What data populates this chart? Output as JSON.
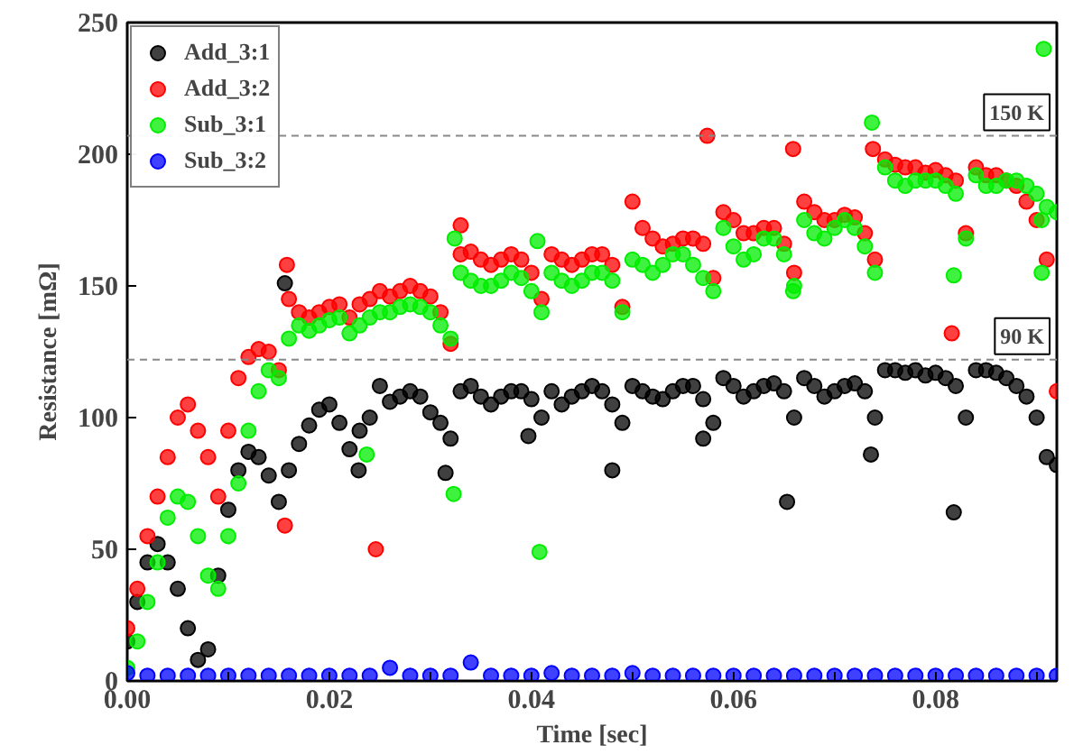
{
  "chart_data": {
    "type": "scatter",
    "xlabel": "Time [sec]",
    "ylabel": "Resistance [mΩ]",
    "xlim": [
      0,
      0.092
    ],
    "ylim": [
      0,
      250
    ],
    "xticks": [
      {
        "value": 0,
        "label": "0.00"
      },
      {
        "value": 0.01,
        "label": null
      },
      {
        "value": 0.02,
        "label": "0.02"
      },
      {
        "value": 0.03,
        "label": null
      },
      {
        "value": 0.04,
        "label": "0.04"
      },
      {
        "value": 0.05,
        "label": null
      },
      {
        "value": 0.06,
        "label": "0.06"
      },
      {
        "value": 0.07,
        "label": null
      },
      {
        "value": 0.08,
        "label": "0.08"
      },
      {
        "value": 0.09,
        "label": null
      }
    ],
    "yticks": [
      0,
      50,
      100,
      150,
      200,
      250
    ],
    "grid": false,
    "legend": "top left",
    "marker": "circle",
    "ref_lines": [
      {
        "axis": "y",
        "value": 207,
        "label": "150 K",
        "color": "#888888",
        "line_style": "dashed"
      },
      {
        "axis": "y",
        "value": 122,
        "label": "90 K",
        "color": "#888888",
        "line_style": "dashed"
      }
    ],
    "series": [
      {
        "name": "Add_3:1",
        "color": "#000000",
        "x": [
          0,
          0.001,
          0.002,
          0.003,
          0.004,
          0.005,
          0.006,
          0.007,
          0.008,
          0.009,
          0.01,
          0.011,
          0.012,
          0.013,
          0.014,
          0.015,
          0.016,
          0.017,
          0.018,
          0.019,
          0.02,
          0.021,
          0.022,
          0.023,
          0.024,
          0.025,
          0.026,
          0.027,
          0.028,
          0.029,
          0.03,
          0.031,
          0.032,
          0.033,
          0.034,
          0.035,
          0.036,
          0.037,
          0.038,
          0.039,
          0.04,
          0.041,
          0.042,
          0.043,
          0.044,
          0.045,
          0.046,
          0.047,
          0.048,
          0.049,
          0.05,
          0.051,
          0.052,
          0.053,
          0.054,
          0.055,
          0.056,
          0.057,
          0.058,
          0.059,
          0.06,
          0.061,
          0.062,
          0.063,
          0.064,
          0.065,
          0.066,
          0.067,
          0.068,
          0.069,
          0.07,
          0.071,
          0.072,
          0.073,
          0.074,
          0.075,
          0.076,
          0.077,
          0.078,
          0.079,
          0.08,
          0.081,
          0.082,
          0.083,
          0.084,
          0.085,
          0.086,
          0.087,
          0.088,
          0.089,
          0.09,
          0.091,
          0.092,
          0.0156,
          0.0229,
          0.0315,
          0.0397,
          0.048,
          0.057,
          0.0653,
          0.0736,
          0.0818
        ],
        "values": [
          15,
          30,
          45,
          52,
          45,
          35,
          20,
          8,
          12,
          40,
          65,
          80,
          87,
          85,
          78,
          68,
          80,
          90,
          97,
          103,
          105,
          98,
          88,
          95,
          100,
          112,
          106,
          108,
          110,
          108,
          102,
          98,
          92,
          110,
          112,
          108,
          105,
          108,
          110,
          110,
          107,
          100,
          110,
          105,
          108,
          110,
          112,
          110,
          105,
          98,
          112,
          110,
          108,
          107,
          110,
          112,
          112,
          107,
          98,
          115,
          112,
          108,
          110,
          112,
          113,
          110,
          100,
          115,
          112,
          108,
          110,
          112,
          113,
          110,
          100,
          118,
          118,
          117,
          118,
          116,
          117,
          115,
          112,
          100,
          118,
          118,
          117,
          115,
          112,
          108,
          100,
          85,
          82,
          151,
          80,
          79,
          93,
          80,
          92,
          68,
          86,
          64
        ]
      },
      {
        "name": "Add_3:2",
        "color": "#ff0000",
        "x": [
          0,
          0.001,
          0.002,
          0.003,
          0.004,
          0.005,
          0.006,
          0.007,
          0.008,
          0.009,
          0.01,
          0.011,
          0.012,
          0.013,
          0.014,
          0.015,
          0.016,
          0.017,
          0.018,
          0.019,
          0.02,
          0.021,
          0.022,
          0.023,
          0.024,
          0.025,
          0.026,
          0.027,
          0.028,
          0.029,
          0.03,
          0.031,
          0.032,
          0.033,
          0.034,
          0.035,
          0.036,
          0.037,
          0.038,
          0.039,
          0.04,
          0.041,
          0.042,
          0.043,
          0.044,
          0.045,
          0.046,
          0.047,
          0.048,
          0.049,
          0.05,
          0.051,
          0.052,
          0.053,
          0.054,
          0.055,
          0.056,
          0.057,
          0.058,
          0.059,
          0.06,
          0.061,
          0.062,
          0.063,
          0.064,
          0.065,
          0.066,
          0.067,
          0.068,
          0.069,
          0.07,
          0.071,
          0.072,
          0.073,
          0.074,
          0.075,
          0.076,
          0.077,
          0.078,
          0.079,
          0.08,
          0.081,
          0.082,
          0.083,
          0.084,
          0.085,
          0.086,
          0.087,
          0.088,
          0.089,
          0.09,
          0.091,
          0.092,
          0.0158,
          0.0156,
          0.0246,
          0.033,
          0.0574,
          0.0659,
          0.0738,
          0.0816
        ],
        "values": [
          20,
          35,
          55,
          70,
          85,
          100,
          105,
          95,
          85,
          70,
          95,
          115,
          123,
          126,
          125,
          118,
          145,
          140,
          138,
          140,
          142,
          143,
          138,
          143,
          145,
          148,
          146,
          148,
          150,
          148,
          146,
          140,
          128,
          162,
          163,
          160,
          158,
          160,
          162,
          160,
          155,
          145,
          162,
          160,
          158,
          160,
          162,
          162,
          158,
          142,
          182,
          172,
          168,
          165,
          166,
          168,
          168,
          166,
          153,
          178,
          175,
          170,
          170,
          172,
          172,
          166,
          155,
          182,
          178,
          175,
          175,
          177,
          176,
          170,
          160,
          198,
          196,
          195,
          195,
          193,
          194,
          192,
          190,
          170,
          195,
          192,
          192,
          190,
          188,
          182,
          175,
          160,
          110,
          158,
          59,
          50,
          173,
          207,
          202,
          202,
          132
        ]
      },
      {
        "name": "Sub_3:1",
        "color": "#00ee00",
        "x": [
          0,
          0.001,
          0.002,
          0.003,
          0.004,
          0.005,
          0.006,
          0.007,
          0.008,
          0.009,
          0.01,
          0.011,
          0.012,
          0.013,
          0.014,
          0.015,
          0.016,
          0.017,
          0.018,
          0.019,
          0.02,
          0.021,
          0.022,
          0.023,
          0.024,
          0.025,
          0.026,
          0.027,
          0.028,
          0.029,
          0.03,
          0.031,
          0.032,
          0.033,
          0.034,
          0.035,
          0.036,
          0.037,
          0.038,
          0.039,
          0.04,
          0.041,
          0.042,
          0.043,
          0.044,
          0.045,
          0.046,
          0.047,
          0.048,
          0.049,
          0.05,
          0.051,
          0.052,
          0.053,
          0.054,
          0.055,
          0.056,
          0.057,
          0.058,
          0.059,
          0.06,
          0.061,
          0.062,
          0.063,
          0.064,
          0.065,
          0.066,
          0.067,
          0.068,
          0.069,
          0.07,
          0.071,
          0.072,
          0.073,
          0.074,
          0.075,
          0.076,
          0.077,
          0.078,
          0.079,
          0.08,
          0.081,
          0.082,
          0.083,
          0.084,
          0.085,
          0.086,
          0.087,
          0.088,
          0.089,
          0.09,
          0.091,
          0.092,
          0.0237,
          0.0323,
          0.0408,
          0.0406,
          0.0324,
          0.0659,
          0.0737,
          0.0818,
          0.0907,
          0.0905,
          0.0905
        ],
        "values": [
          5,
          15,
          30,
          45,
          62,
          70,
          68,
          55,
          40,
          35,
          55,
          75,
          95,
          110,
          118,
          115,
          130,
          135,
          133,
          135,
          137,
          138,
          132,
          135,
          138,
          140,
          140,
          142,
          143,
          142,
          140,
          135,
          130,
          155,
          152,
          150,
          150,
          152,
          155,
          153,
          148,
          140,
          155,
          152,
          150,
          152,
          155,
          155,
          152,
          140,
          160,
          158,
          155,
          158,
          162,
          162,
          158,
          153,
          148,
          172,
          165,
          160,
          162,
          168,
          168,
          162,
          150,
          175,
          170,
          168,
          172,
          175,
          172,
          165,
          155,
          195,
          190,
          188,
          190,
          190,
          190,
          188,
          185,
          168,
          192,
          188,
          188,
          190,
          190,
          188,
          185,
          180,
          178,
          86,
          71,
          49,
          167,
          168,
          148,
          212,
          154,
          240,
          155,
          175
        ]
      },
      {
        "name": "Sub_3:2",
        "color": "#0000ff",
        "x": [
          0,
          0.002,
          0.004,
          0.006,
          0.008,
          0.01,
          0.012,
          0.014,
          0.016,
          0.018,
          0.02,
          0.022,
          0.024,
          0.026,
          0.028,
          0.03,
          0.032,
          0.034,
          0.036,
          0.038,
          0.04,
          0.042,
          0.044,
          0.046,
          0.048,
          0.05,
          0.052,
          0.054,
          0.056,
          0.058,
          0.06,
          0.062,
          0.064,
          0.066,
          0.068,
          0.07,
          0.072,
          0.074,
          0.076,
          0.078,
          0.08,
          0.082,
          0.084,
          0.086,
          0.088,
          0.09,
          0.092
        ],
        "values": [
          3,
          2,
          2,
          2,
          2,
          2,
          2,
          2,
          2,
          2,
          2,
          2,
          2,
          5,
          2,
          2,
          2,
          7,
          2,
          2,
          2,
          3,
          2,
          2,
          2,
          3,
          2,
          2,
          2,
          2,
          2,
          2,
          2,
          2,
          2,
          2,
          2,
          2,
          2,
          2,
          2,
          2,
          2,
          2,
          2,
          2,
          2
        ]
      }
    ]
  }
}
